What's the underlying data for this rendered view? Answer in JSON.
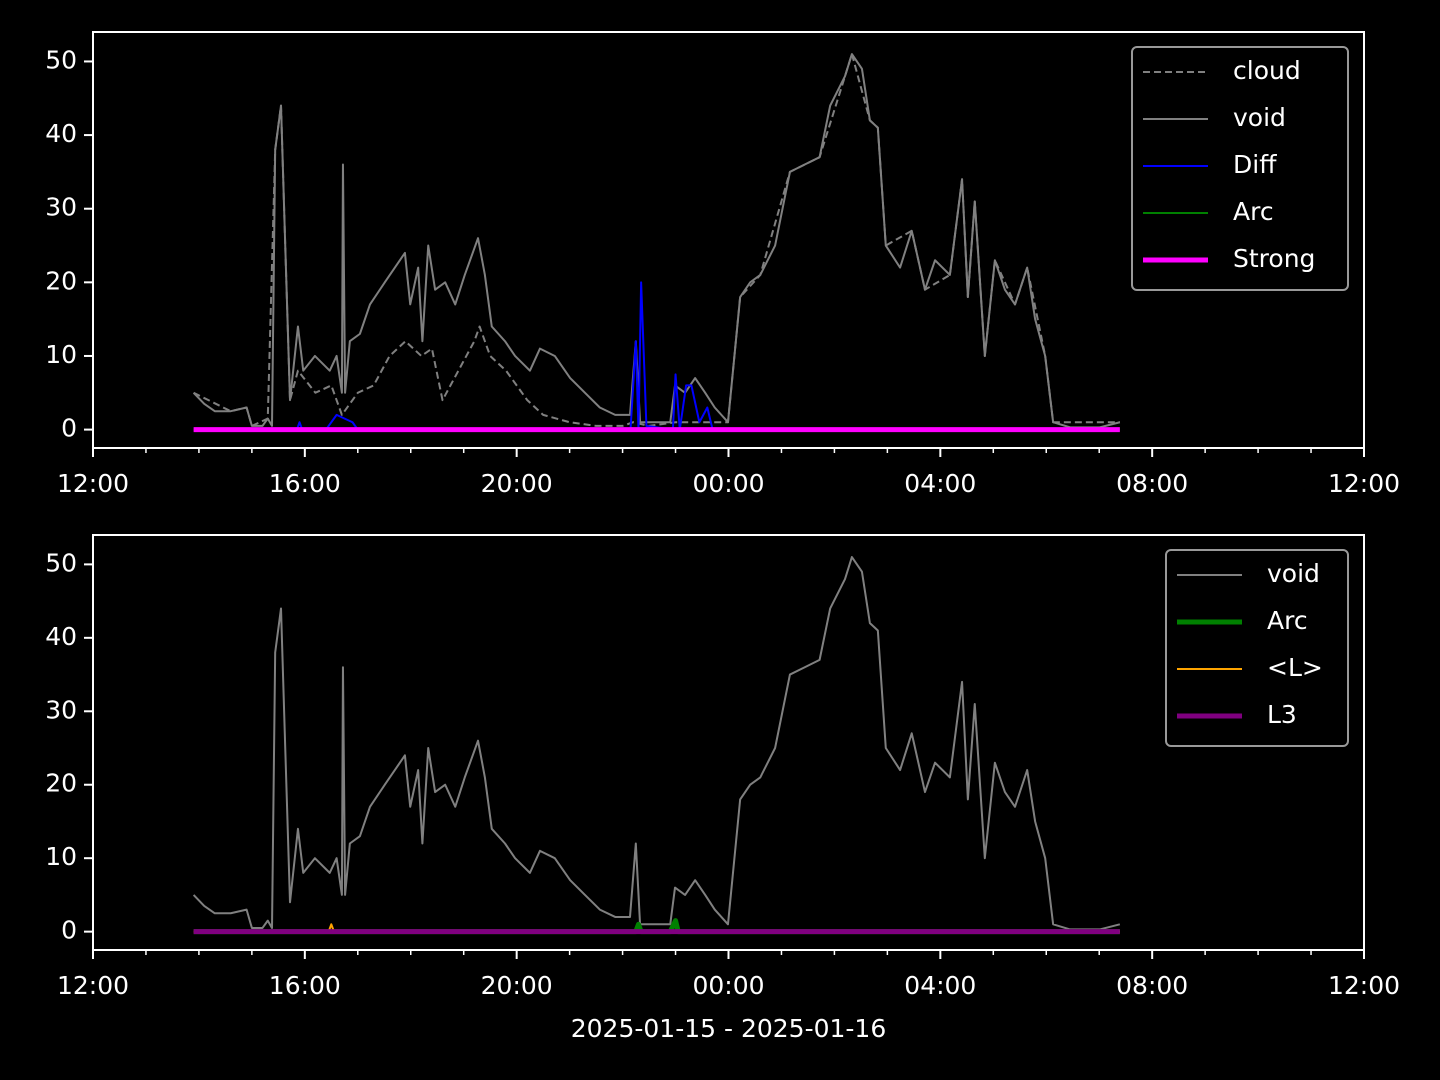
{
  "chart_data": [
    {
      "type": "line",
      "xlim": [
        12,
        36
      ],
      "xticks": [
        {
          "value": 12,
          "label": "12:00"
        },
        {
          "value": 16,
          "label": "16:00"
        },
        {
          "value": 20,
          "label": "20:00"
        },
        {
          "value": 24,
          "label": "00:00"
        },
        {
          "value": 28,
          "label": "04:00"
        },
        {
          "value": 32,
          "label": "08:00"
        },
        {
          "value": 36,
          "label": "12:00"
        }
      ],
      "xminor_ticks": [
        13,
        14,
        15,
        17,
        18,
        19,
        21,
        22,
        23,
        25,
        26,
        27,
        29,
        30,
        31,
        33,
        34,
        35
      ],
      "ylim": [
        -2.5,
        54
      ],
      "yticks": [
        0,
        10,
        20,
        30,
        40,
        50
      ],
      "legend": "upper right",
      "series": [
        {
          "name": "cloud",
          "color": "#808080",
          "style": "dashed",
          "width": 2,
          "x": [
            13.9,
            14.6,
            14.9,
            15.0,
            15.3,
            15.44,
            15.55,
            15.63,
            15.72,
            15.87,
            16.2,
            16.5,
            16.7,
            17.0,
            17.3,
            17.6,
            17.9,
            18.2,
            18.4,
            18.6,
            18.9,
            19.2,
            19.3,
            19.5,
            19.8,
            20.2,
            20.5,
            21.0,
            21.5,
            22.0,
            22.2,
            22.5,
            23.0,
            23.99,
            24.22,
            24.6,
            25.16,
            25.72,
            26.2,
            26.33,
            26.67,
            26.82,
            26.97,
            27.46,
            27.71,
            28.18,
            28.41,
            28.52,
            28.65,
            28.84,
            29.03,
            29.41,
            29.64,
            29.98,
            30.13,
            31.39
          ],
          "values": [
            5,
            2.5,
            3,
            0.5,
            1.5,
            38,
            44,
            25,
            4,
            8,
            5,
            6,
            2,
            5,
            6,
            10,
            12,
            10,
            11,
            4,
            8,
            12,
            14,
            10,
            8,
            4,
            2,
            1,
            0.5,
            0.5,
            1,
            0.5,
            1,
            1,
            18,
            21,
            35,
            37,
            48,
            51,
            42,
            41,
            25,
            27,
            19,
            21,
            34,
            18,
            31,
            10,
            23,
            17,
            22,
            10,
            1,
            1
          ]
        },
        {
          "name": "void",
          "color": "#808080",
          "style": "solid",
          "width": 2,
          "x": [
            13.9,
            14.1,
            14.3,
            14.6,
            14.9,
            15.0,
            15.2,
            15.3,
            15.38,
            15.44,
            15.55,
            15.63,
            15.72,
            15.87,
            15.97,
            16.19,
            16.47,
            16.6,
            16.7,
            16.72,
            16.76,
            16.85,
            17.04,
            17.23,
            17.51,
            17.89,
            17.99,
            18.14,
            18.22,
            18.33,
            18.46,
            18.65,
            18.84,
            19.02,
            19.27,
            19.4,
            19.53,
            19.78,
            19.97,
            20.25,
            20.44,
            20.72,
            21.01,
            21.29,
            21.57,
            21.86,
            22.14,
            22.25,
            22.33,
            22.61,
            22.9,
            22.99,
            23.18,
            23.37,
            23.56,
            23.74,
            23.99,
            24.22,
            24.41,
            24.6,
            24.88,
            25.16,
            25.44,
            25.72,
            25.92,
            26.2,
            26.33,
            26.52,
            26.67,
            26.82,
            26.97,
            27.24,
            27.46,
            27.71,
            27.9,
            28.18,
            28.41,
            28.52,
            28.65,
            28.84,
            29.03,
            29.22,
            29.41,
            29.64,
            29.79,
            29.98,
            30.13,
            30.45,
            31.01,
            31.39
          ],
          "values": [
            5,
            3.5,
            2.5,
            2.5,
            3,
            0.5,
            0.5,
            1.5,
            0.5,
            38,
            44,
            25,
            4,
            14,
            8,
            10,
            8,
            10,
            5,
            36,
            5,
            12,
            13,
            17,
            20,
            24,
            17,
            22,
            12,
            25,
            19,
            20,
            17,
            21,
            26,
            21,
            14,
            12,
            10,
            8,
            11,
            10,
            7,
            5,
            3,
            2,
            2,
            12,
            1,
            1,
            1,
            6,
            5,
            7,
            5,
            3,
            1,
            18,
            20,
            21,
            25,
            35,
            36,
            37,
            44,
            48,
            51,
            49,
            42,
            41,
            25,
            22,
            27,
            19,
            23,
            21,
            34,
            18,
            31,
            10,
            23,
            19,
            17,
            22,
            15,
            10,
            1,
            0.3,
            0.3,
            1
          ]
        },
        {
          "name": "Diff",
          "color": "#0000ff",
          "style": "solid",
          "width": 2,
          "x": [
            13.9,
            15.85,
            15.9,
            15.95,
            16.4,
            16.6,
            16.9,
            17.0,
            22.15,
            22.25,
            22.3,
            22.35,
            22.45,
            22.95,
            23.0,
            23.08,
            23.2,
            23.3,
            23.45,
            23.6,
            23.7,
            31.39
          ],
          "values": [
            0,
            0,
            1,
            0,
            0,
            2,
            1,
            0,
            0,
            12,
            0,
            20,
            0.5,
            0,
            7.5,
            0,
            6,
            6,
            1,
            3,
            0,
            0
          ]
        },
        {
          "name": "Arc",
          "color": "#008000",
          "style": "solid",
          "width": 2,
          "x": [
            13.9,
            31.39
          ],
          "values": [
            0,
            0
          ]
        },
        {
          "name": "Strong",
          "color": "#ff00ff",
          "style": "solid",
          "width": 5,
          "x": [
            13.9,
            31.39
          ],
          "values": [
            0,
            0
          ]
        }
      ]
    },
    {
      "type": "line",
      "x_label": "2025-01-15 - 2025-01-16",
      "xlim": [
        12,
        36
      ],
      "xticks": [
        {
          "value": 12,
          "label": "12:00"
        },
        {
          "value": 16,
          "label": "16:00"
        },
        {
          "value": 20,
          "label": "20:00"
        },
        {
          "value": 24,
          "label": "00:00"
        },
        {
          "value": 28,
          "label": "04:00"
        },
        {
          "value": 32,
          "label": "08:00"
        },
        {
          "value": 36,
          "label": "12:00"
        }
      ],
      "xminor_ticks": [
        13,
        14,
        15,
        17,
        18,
        19,
        21,
        22,
        23,
        25,
        26,
        27,
        29,
        30,
        31,
        33,
        34,
        35
      ],
      "ylim": [
        -2.5,
        54
      ],
      "yticks": [
        0,
        10,
        20,
        30,
        40,
        50
      ],
      "legend": "upper right",
      "series": [
        {
          "name": "void",
          "color": "#808080",
          "style": "solid",
          "width": 2,
          "x": [
            13.9,
            14.1,
            14.3,
            14.6,
            14.9,
            15.0,
            15.2,
            15.3,
            15.38,
            15.44,
            15.55,
            15.63,
            15.72,
            15.87,
            15.97,
            16.19,
            16.47,
            16.6,
            16.7,
            16.72,
            16.76,
            16.85,
            17.04,
            17.23,
            17.51,
            17.89,
            17.99,
            18.14,
            18.22,
            18.33,
            18.46,
            18.65,
            18.84,
            19.02,
            19.27,
            19.4,
            19.53,
            19.78,
            19.97,
            20.25,
            20.44,
            20.72,
            21.01,
            21.29,
            21.57,
            21.86,
            22.14,
            22.25,
            22.33,
            22.61,
            22.9,
            22.99,
            23.18,
            23.37,
            23.56,
            23.74,
            23.99,
            24.22,
            24.41,
            24.6,
            24.88,
            25.16,
            25.44,
            25.72,
            25.92,
            26.2,
            26.33,
            26.52,
            26.67,
            26.82,
            26.97,
            27.24,
            27.46,
            27.71,
            27.9,
            28.18,
            28.41,
            28.52,
            28.65,
            28.84,
            29.03,
            29.22,
            29.41,
            29.64,
            29.79,
            29.98,
            30.13,
            30.45,
            31.01,
            31.39
          ],
          "values": [
            5,
            3.5,
            2.5,
            2.5,
            3,
            0.5,
            0.5,
            1.5,
            0.5,
            38,
            44,
            25,
            4,
            14,
            8,
            10,
            8,
            10,
            5,
            36,
            5,
            12,
            13,
            17,
            20,
            24,
            17,
            22,
            12,
            25,
            19,
            20,
            17,
            21,
            26,
            21,
            14,
            12,
            10,
            8,
            11,
            10,
            7,
            5,
            3,
            2,
            2,
            12,
            1,
            1,
            1,
            6,
            5,
            7,
            5,
            3,
            1,
            18,
            20,
            21,
            25,
            35,
            36,
            37,
            44,
            48,
            51,
            49,
            42,
            41,
            25,
            22,
            27,
            19,
            23,
            21,
            34,
            18,
            31,
            10,
            23,
            19,
            17,
            22,
            15,
            10,
            1,
            0.3,
            0.3,
            1
          ]
        },
        {
          "name": "Arc",
          "color": "#008000",
          "style": "solid",
          "width": 5,
          "x": [
            13.9,
            22.25,
            22.3,
            22.35,
            22.9,
            23.0,
            23.05,
            31.39
          ],
          "values": [
            0,
            0,
            1,
            0,
            0,
            1.5,
            0,
            0
          ]
        },
        {
          "name": "<L>",
          "color": "#ffa500",
          "style": "solid",
          "width": 2,
          "x": [
            13.9,
            16.45,
            16.5,
            16.55,
            31.39
          ],
          "values": [
            0,
            0,
            1,
            0,
            0
          ]
        },
        {
          "name": "L3",
          "color": "#800080",
          "style": "solid",
          "width": 5,
          "x": [
            13.9,
            31.39
          ],
          "values": [
            0,
            0
          ]
        }
      ]
    }
  ]
}
